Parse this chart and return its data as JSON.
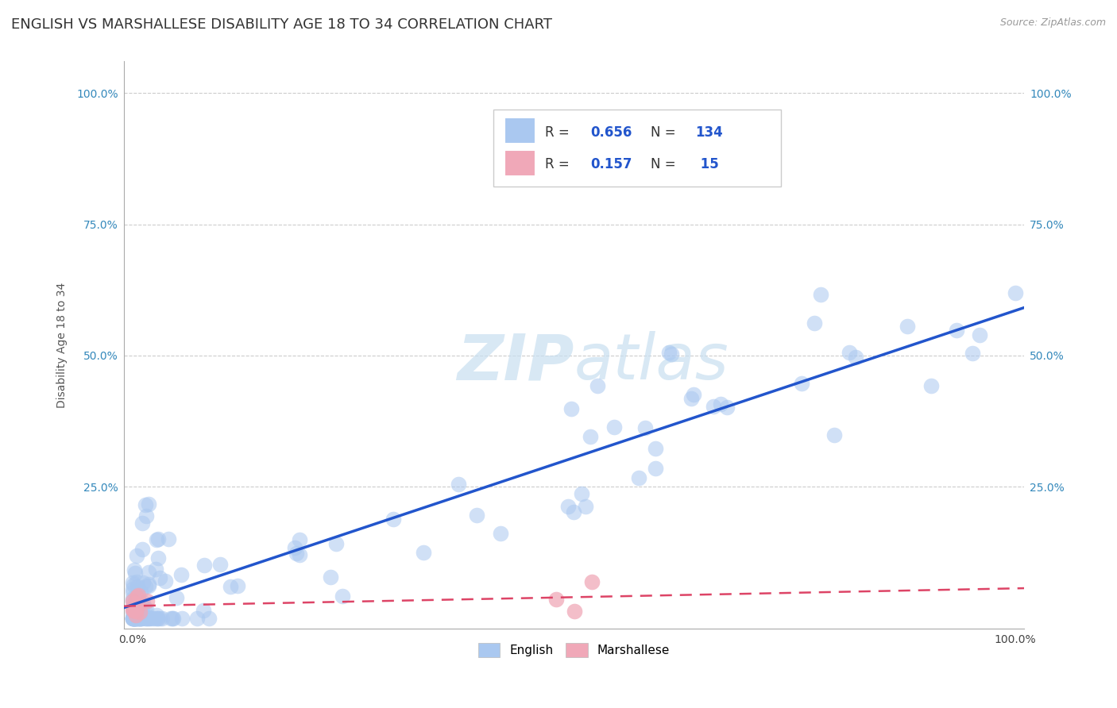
{
  "title": "ENGLISH VS MARSHALLESE DISABILITY AGE 18 TO 34 CORRELATION CHART",
  "source_text": "Source: ZipAtlas.com",
  "ylabel": "Disability Age 18 to 34",
  "xlim": [
    -0.01,
    1.01
  ],
  "ylim": [
    -0.02,
    1.06
  ],
  "x_tick_labels": [
    "0.0%",
    "100.0%"
  ],
  "x_tick_positions": [
    0.0,
    1.0
  ],
  "y_tick_labels": [
    "25.0%",
    "50.0%",
    "75.0%",
    "100.0%"
  ],
  "y_tick_positions": [
    0.25,
    0.5,
    0.75,
    1.0
  ],
  "english_R": 0.656,
  "english_N": 134,
  "marshallese_R": 0.157,
  "marshallese_N": 15,
  "english_color": "#aac8f0",
  "marshallese_color": "#f0a8b8",
  "english_line_color": "#2255cc",
  "marshallese_line_color": "#dd4466",
  "watermark_color": "#c8dff0",
  "background_color": "#ffffff",
  "grid_color": "#cccccc",
  "title_fontsize": 13,
  "axis_label_fontsize": 10,
  "tick_fontsize": 10,
  "source_fontsize": 9
}
